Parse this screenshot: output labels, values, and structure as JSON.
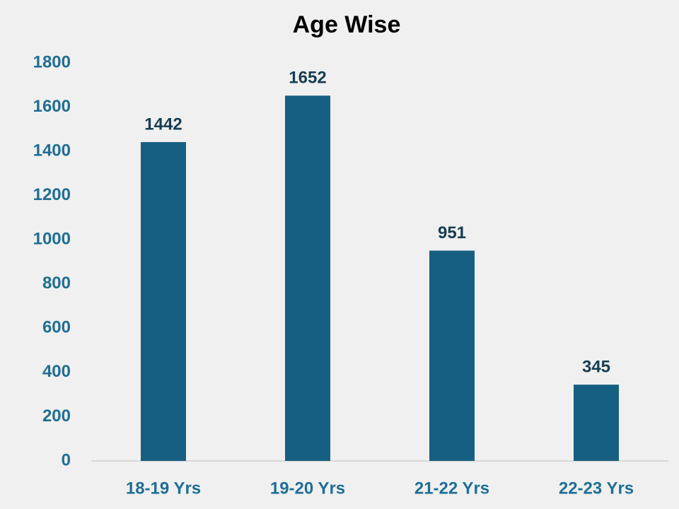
{
  "chart_data": {
    "type": "bar",
    "title": "Age Wise",
    "categories": [
      "18-19 Yrs",
      "19-20 Yrs",
      "21-22 Yrs",
      "22-23 Yrs"
    ],
    "values": [
      1442,
      1652,
      951,
      345
    ],
    "color": "#175f82",
    "ylim": [
      0,
      1800
    ],
    "yticks": [
      0,
      200,
      400,
      600,
      800,
      1000,
      1200,
      1400,
      1600,
      1800
    ],
    "grid": false
  }
}
